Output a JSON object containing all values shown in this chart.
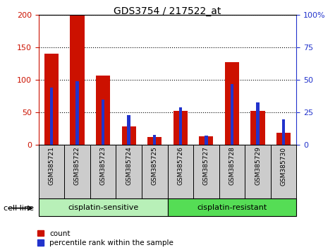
{
  "title": "GDS3754 / 217522_at",
  "samples": [
    "GSM385721",
    "GSM385722",
    "GSM385723",
    "GSM385724",
    "GSM385725",
    "GSM385726",
    "GSM385727",
    "GSM385728",
    "GSM385729",
    "GSM385730"
  ],
  "counts": [
    140,
    200,
    107,
    29,
    12,
    52,
    13,
    127,
    52,
    19
  ],
  "percentile_ranks": [
    44,
    49,
    35,
    23,
    8,
    29,
    7,
    47,
    33,
    20
  ],
  "groups": [
    {
      "label": "cisplatin-sensitive",
      "start": 0,
      "end": 5,
      "color": "#b8f0b8"
    },
    {
      "label": "cisplatin-resistant",
      "start": 5,
      "end": 10,
      "color": "#55dd55"
    }
  ],
  "group_label": "cell line",
  "count_color": "#cc1100",
  "percentile_color": "#2233cc",
  "ylim_left": [
    0,
    200
  ],
  "ylim_right": [
    0,
    100
  ],
  "yticks_left": [
    0,
    50,
    100,
    150,
    200
  ],
  "yticks_right": [
    0,
    25,
    50,
    75,
    100
  ],
  "red_bar_width": 0.55,
  "blue_bar_width": 0.12,
  "grid_color": "black",
  "bg_color": "#cccccc",
  "plot_bg": "white",
  "legend_count_label": "count",
  "legend_pct_label": "percentile rank within the sample"
}
